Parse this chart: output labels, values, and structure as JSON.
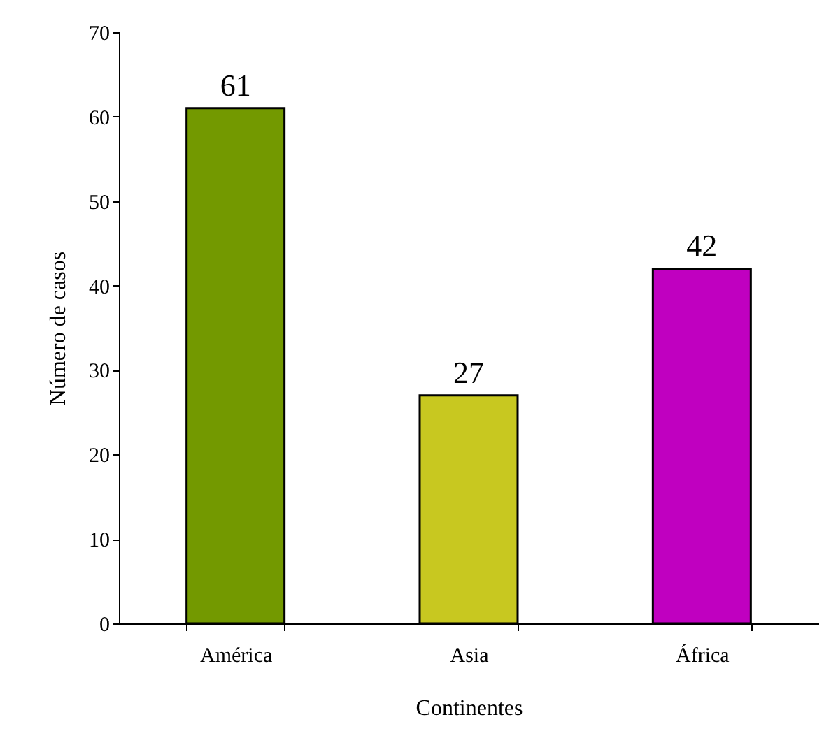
{
  "chart_data": {
    "type": "bar",
    "xlabel": "Continentes",
    "ylabel": "Número de casos",
    "categories": [
      "América",
      "Asia",
      "África"
    ],
    "values": [
      61,
      27,
      42
    ],
    "colors": [
      "#739900",
      "#c8c820",
      "#c000c0"
    ],
    "ylim": [
      0,
      70
    ],
    "yticks": [
      0,
      10,
      20,
      30,
      40,
      50,
      60,
      70
    ],
    "data_labels": true,
    "grid": false,
    "legend": false
  }
}
